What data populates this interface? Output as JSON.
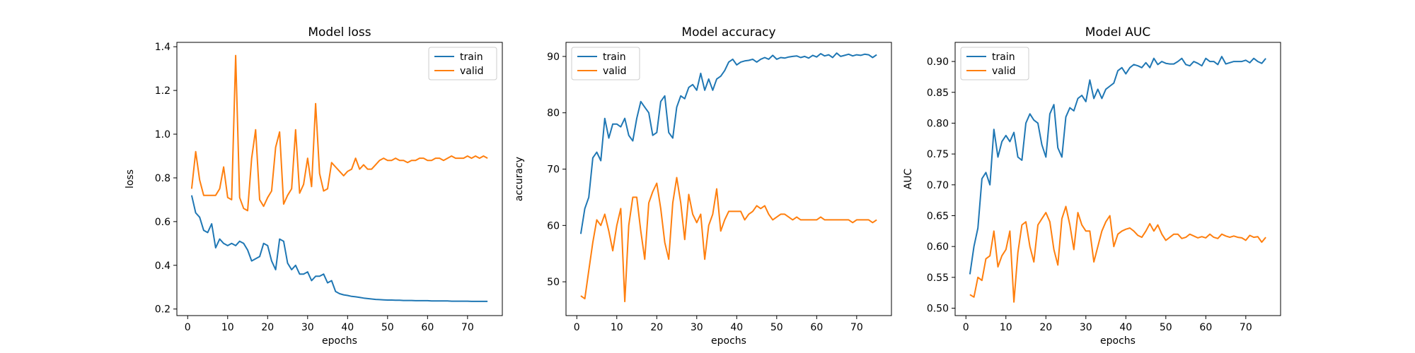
{
  "chart_data": [
    {
      "type": "line",
      "title": "Model loss",
      "xlabel": "epochs",
      "ylabel": "loss",
      "xlim": [
        -2.7,
        78.7
      ],
      "ylim": [
        0.17,
        1.42
      ],
      "xticks": [
        0,
        10,
        20,
        30,
        40,
        50,
        60,
        70
      ],
      "yticks": [
        0.2,
        0.4,
        0.6,
        0.8,
        1.0,
        1.2,
        1.4
      ],
      "ytick_decimals": 1,
      "legend_position": "upper right",
      "x": [
        1,
        2,
        3,
        4,
        5,
        6,
        7,
        8,
        9,
        10,
        11,
        12,
        13,
        14,
        15,
        16,
        17,
        18,
        19,
        20,
        21,
        22,
        23,
        24,
        25,
        26,
        27,
        28,
        29,
        30,
        31,
        32,
        33,
        34,
        35,
        36,
        37,
        38,
        39,
        40,
        41,
        42,
        43,
        44,
        45,
        46,
        47,
        48,
        49,
        50,
        51,
        52,
        53,
        54,
        55,
        56,
        57,
        58,
        59,
        60,
        61,
        62,
        63,
        64,
        65,
        66,
        67,
        68,
        69,
        70,
        71,
        72,
        73,
        74,
        75
      ],
      "series": [
        {
          "name": "train",
          "color": "#1f77b4",
          "values": [
            0.72,
            0.64,
            0.62,
            0.56,
            0.55,
            0.59,
            0.48,
            0.52,
            0.5,
            0.49,
            0.5,
            0.49,
            0.51,
            0.5,
            0.47,
            0.42,
            0.43,
            0.44,
            0.5,
            0.49,
            0.42,
            0.38,
            0.52,
            0.51,
            0.41,
            0.38,
            0.4,
            0.36,
            0.36,
            0.37,
            0.33,
            0.35,
            0.35,
            0.36,
            0.32,
            0.33,
            0.28,
            0.27,
            0.265,
            0.262,
            0.258,
            0.256,
            0.253,
            0.25,
            0.248,
            0.246,
            0.244,
            0.243,
            0.242,
            0.241,
            0.241,
            0.24,
            0.24,
            0.239,
            0.239,
            0.239,
            0.238,
            0.238,
            0.238,
            0.238,
            0.237,
            0.237,
            0.237,
            0.237,
            0.237,
            0.236,
            0.236,
            0.236,
            0.236,
            0.236,
            0.235,
            0.235,
            0.235,
            0.235,
            0.235
          ]
        },
        {
          "name": "valid",
          "color": "#ff7f0e",
          "values": [
            0.75,
            0.92,
            0.79,
            0.72,
            0.72,
            0.72,
            0.72,
            0.75,
            0.85,
            0.71,
            0.7,
            1.36,
            0.71,
            0.66,
            0.65,
            0.89,
            1.02,
            0.7,
            0.67,
            0.71,
            0.74,
            0.94,
            1.01,
            0.68,
            0.72,
            0.75,
            1.02,
            0.73,
            0.77,
            0.89,
            0.76,
            1.14,
            0.82,
            0.74,
            0.75,
            0.87,
            0.85,
            0.83,
            0.81,
            0.83,
            0.84,
            0.89,
            0.84,
            0.86,
            0.84,
            0.84,
            0.86,
            0.88,
            0.89,
            0.88,
            0.88,
            0.89,
            0.88,
            0.88,
            0.87,
            0.88,
            0.88,
            0.89,
            0.89,
            0.88,
            0.88,
            0.89,
            0.89,
            0.88,
            0.89,
            0.9,
            0.89,
            0.89,
            0.89,
            0.9,
            0.89,
            0.9,
            0.89,
            0.9,
            0.89
          ]
        }
      ]
    },
    {
      "type": "line",
      "title": "Model accuracy",
      "xlabel": "epochs",
      "ylabel": "accuracy",
      "xlim": [
        -2.7,
        78.7
      ],
      "ylim": [
        44.0,
        92.5
      ],
      "xticks": [
        0,
        10,
        20,
        30,
        40,
        50,
        60,
        70
      ],
      "yticks": [
        50,
        60,
        70,
        80,
        90
      ],
      "ytick_decimals": 0,
      "legend_position": "upper left",
      "x": [
        1,
        2,
        3,
        4,
        5,
        6,
        7,
        8,
        9,
        10,
        11,
        12,
        13,
        14,
        15,
        16,
        17,
        18,
        19,
        20,
        21,
        22,
        23,
        24,
        25,
        26,
        27,
        28,
        29,
        30,
        31,
        32,
        33,
        34,
        35,
        36,
        37,
        38,
        39,
        40,
        41,
        42,
        43,
        44,
        45,
        46,
        47,
        48,
        49,
        50,
        51,
        52,
        53,
        54,
        55,
        56,
        57,
        58,
        59,
        60,
        61,
        62,
        63,
        64,
        65,
        66,
        67,
        68,
        69,
        70,
        71,
        72,
        73,
        74,
        75
      ],
      "series": [
        {
          "name": "train",
          "color": "#1f77b4",
          "values": [
            58.5,
            63,
            65,
            72,
            73,
            71.5,
            79,
            75.5,
            78,
            78,
            77.5,
            79,
            76,
            75,
            79,
            82,
            81,
            80,
            76,
            76.5,
            82,
            83,
            76.5,
            75.5,
            81,
            83,
            82.5,
            84.5,
            85,
            84,
            87,
            84,
            86,
            84,
            86,
            86.5,
            87.5,
            89,
            89.5,
            88.5,
            89,
            89.2,
            89.3,
            89.5,
            89,
            89.5,
            89.8,
            89.5,
            90.2,
            89.5,
            89.8,
            89.7,
            89.9,
            90,
            90.1,
            89.8,
            90,
            89.7,
            90.2,
            89.9,
            90.5,
            90.1,
            90.3,
            89.8,
            90.6,
            90,
            90.2,
            90.4,
            90.1,
            90.3,
            90.2,
            90.4,
            90.3,
            89.8,
            90.3
          ]
        },
        {
          "name": "valid",
          "color": "#ff7f0e",
          "values": [
            47.5,
            47,
            52,
            57,
            61,
            60,
            62,
            59,
            55.5,
            60,
            63,
            46.5,
            60,
            65,
            65,
            59,
            54,
            64,
            66,
            67.5,
            63,
            57,
            54,
            64,
            68.5,
            64,
            57.5,
            65.5,
            62,
            60.5,
            62,
            54,
            60,
            62,
            66.5,
            59,
            61,
            62.5,
            62.5,
            62.5,
            62.5,
            61,
            62,
            62.5,
            63.5,
            63,
            63.5,
            62,
            61,
            61.5,
            62,
            62,
            61.5,
            61,
            61.5,
            61,
            61,
            61,
            61,
            61,
            61.5,
            61,
            61,
            61,
            61,
            61,
            61,
            61,
            60.5,
            61,
            61,
            61,
            61,
            60.5,
            61
          ]
        }
      ]
    },
    {
      "type": "line",
      "title": "Model AUC",
      "xlabel": "epochs",
      "ylabel": "AUC",
      "xlim": [
        -2.7,
        78.7
      ],
      "ylim": [
        0.488,
        0.931
      ],
      "xticks": [
        0,
        10,
        20,
        30,
        40,
        50,
        60,
        70
      ],
      "yticks": [
        0.5,
        0.55,
        0.6,
        0.65,
        0.7,
        0.75,
        0.8,
        0.85,
        0.9
      ],
      "ytick_decimals": 2,
      "legend_position": "upper left",
      "x": [
        1,
        2,
        3,
        4,
        5,
        6,
        7,
        8,
        9,
        10,
        11,
        12,
        13,
        14,
        15,
        16,
        17,
        18,
        19,
        20,
        21,
        22,
        23,
        24,
        25,
        26,
        27,
        28,
        29,
        30,
        31,
        32,
        33,
        34,
        35,
        36,
        37,
        38,
        39,
        40,
        41,
        42,
        43,
        44,
        45,
        46,
        47,
        48,
        49,
        50,
        51,
        52,
        53,
        54,
        55,
        56,
        57,
        58,
        59,
        60,
        61,
        62,
        63,
        64,
        65,
        66,
        67,
        68,
        69,
        70,
        71,
        72,
        73,
        74,
        75
      ],
      "series": [
        {
          "name": "train",
          "color": "#1f77b4",
          "values": [
            0.555,
            0.6,
            0.63,
            0.71,
            0.72,
            0.7,
            0.79,
            0.745,
            0.77,
            0.78,
            0.77,
            0.785,
            0.745,
            0.74,
            0.8,
            0.815,
            0.805,
            0.8,
            0.765,
            0.745,
            0.815,
            0.83,
            0.76,
            0.745,
            0.81,
            0.825,
            0.82,
            0.84,
            0.845,
            0.835,
            0.87,
            0.84,
            0.855,
            0.84,
            0.855,
            0.86,
            0.865,
            0.885,
            0.89,
            0.88,
            0.89,
            0.895,
            0.893,
            0.89,
            0.898,
            0.89,
            0.905,
            0.895,
            0.9,
            0.897,
            0.896,
            0.896,
            0.9,
            0.905,
            0.895,
            0.893,
            0.9,
            0.897,
            0.893,
            0.905,
            0.9,
            0.9,
            0.895,
            0.908,
            0.896,
            0.898,
            0.9,
            0.9,
            0.9,
            0.902,
            0.898,
            0.905,
            0.9,
            0.897,
            0.905
          ]
        },
        {
          "name": "valid",
          "color": "#ff7f0e",
          "values": [
            0.522,
            0.518,
            0.55,
            0.545,
            0.58,
            0.585,
            0.625,
            0.567,
            0.585,
            0.595,
            0.625,
            0.51,
            0.59,
            0.635,
            0.64,
            0.6,
            0.575,
            0.635,
            0.645,
            0.655,
            0.64,
            0.595,
            0.57,
            0.645,
            0.665,
            0.635,
            0.595,
            0.655,
            0.635,
            0.625,
            0.625,
            0.575,
            0.6,
            0.625,
            0.64,
            0.65,
            0.6,
            0.62,
            0.625,
            0.628,
            0.63,
            0.625,
            0.618,
            0.615,
            0.625,
            0.637,
            0.625,
            0.635,
            0.62,
            0.61,
            0.615,
            0.62,
            0.62,
            0.613,
            0.615,
            0.62,
            0.617,
            0.614,
            0.616,
            0.614,
            0.62,
            0.615,
            0.613,
            0.62,
            0.617,
            0.615,
            0.617,
            0.615,
            0.614,
            0.61,
            0.618,
            0.615,
            0.616,
            0.607,
            0.615
          ]
        }
      ]
    }
  ]
}
